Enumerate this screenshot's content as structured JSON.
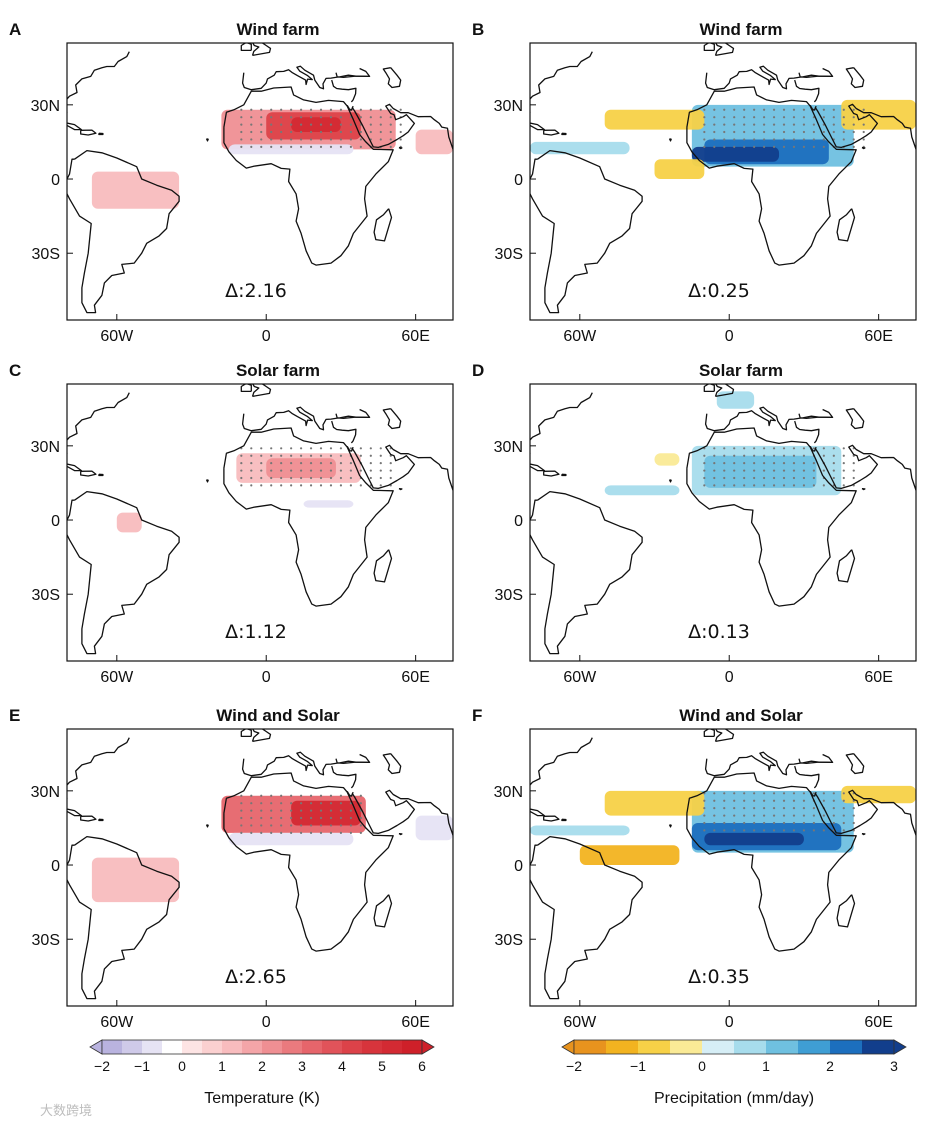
{
  "figure": {
    "watermark": "大数跨境"
  },
  "chart_data": [
    {
      "panel": "A",
      "type": "heatmap",
      "title": "Wind farm",
      "variable": "temperature",
      "units": "K",
      "delta_label": "Δ:2.16",
      "xticks": [
        "60W",
        "0",
        "60E"
      ],
      "yticks": [
        "30N",
        "0",
        "30S"
      ],
      "xlim_deg": [
        -80,
        75
      ],
      "ylim_deg": [
        -57,
        55
      ],
      "anomalies": [
        {
          "lon": [
            -18,
            52
          ],
          "lat": [
            12,
            28
          ],
          "value": 2.0
        },
        {
          "lon": [
            0,
            38
          ],
          "lat": [
            16,
            27
          ],
          "value": 4.0
        },
        {
          "lon": [
            10,
            30
          ],
          "lat": [
            19,
            25
          ],
          "value": 5.0
        },
        {
          "lon": [
            -70,
            -35
          ],
          "lat": [
            -12,
            3
          ],
          "value": 1.0
        },
        {
          "lon": [
            -15,
            35
          ],
          "lat": [
            10,
            14
          ],
          "value": -1.0
        },
        {
          "lon": [
            60,
            75
          ],
          "lat": [
            10,
            20
          ],
          "value": 1.0
        }
      ],
      "stippling": [
        {
          "lon": [
            -10,
            55
          ],
          "lat": [
            13,
            28
          ]
        }
      ]
    },
    {
      "panel": "B",
      "type": "heatmap",
      "title": "Wind farm",
      "variable": "precipitation",
      "units": "mm/day",
      "delta_label": "Δ:0.25",
      "xticks": [
        "60W",
        "0",
        "60E"
      ],
      "yticks": [
        "30N",
        "0",
        "30S"
      ],
      "xlim_deg": [
        -80,
        75
      ],
      "ylim_deg": [
        -57,
        55
      ],
      "anomalies": [
        {
          "lon": [
            -15,
            50
          ],
          "lat": [
            5,
            30
          ],
          "value": 1.0
        },
        {
          "lon": [
            -10,
            40
          ],
          "lat": [
            6,
            16
          ],
          "value": 2.0
        },
        {
          "lon": [
            -15,
            20
          ],
          "lat": [
            7,
            13
          ],
          "value": 2.5
        },
        {
          "lon": [
            -50,
            -10
          ],
          "lat": [
            20,
            28
          ],
          "value": -1.0
        },
        {
          "lon": [
            45,
            75
          ],
          "lat": [
            20,
            32
          ],
          "value": -1.0
        },
        {
          "lon": [
            -30,
            -10
          ],
          "lat": [
            0,
            8
          ],
          "value": -1.0
        },
        {
          "lon": [
            -80,
            -40
          ],
          "lat": [
            10,
            15
          ],
          "value": 0.5
        }
      ],
      "stippling": [
        {
          "lon": [
            -10,
            55
          ],
          "lat": [
            13,
            28
          ]
        }
      ]
    },
    {
      "panel": "C",
      "type": "heatmap",
      "title": "Solar farm",
      "variable": "temperature",
      "units": "K",
      "delta_label": "Δ:1.12",
      "xticks": [
        "60W",
        "0",
        "60E"
      ],
      "yticks": [
        "30N",
        "0",
        "30S"
      ],
      "xlim_deg": [
        -80,
        75
      ],
      "ylim_deg": [
        -57,
        55
      ],
      "anomalies": [
        {
          "lon": [
            -12,
            38
          ],
          "lat": [
            15,
            27
          ],
          "value": 1.0
        },
        {
          "lon": [
            0,
            28
          ],
          "lat": [
            17,
            25
          ],
          "value": 2.0
        },
        {
          "lon": [
            -60,
            -50
          ],
          "lat": [
            -5,
            3
          ],
          "value": 1.0
        },
        {
          "lon": [
            15,
            35
          ],
          "lat": [
            5,
            8
          ],
          "value": -1.0
        }
      ],
      "stippling": [
        {
          "lon": [
            -10,
            50
          ],
          "lat": [
            14,
            30
          ]
        }
      ]
    },
    {
      "panel": "D",
      "type": "heatmap",
      "title": "Solar farm",
      "variable": "precipitation",
      "units": "mm/day",
      "delta_label": "Δ:0.13",
      "xticks": [
        "60W",
        "0",
        "60E"
      ],
      "yticks": [
        "30N",
        "0",
        "30S"
      ],
      "xlim_deg": [
        -80,
        75
      ],
      "ylim_deg": [
        -57,
        55
      ],
      "anomalies": [
        {
          "lon": [
            -15,
            45
          ],
          "lat": [
            10,
            30
          ],
          "value": 0.5
        },
        {
          "lon": [
            -10,
            35
          ],
          "lat": [
            13,
            26
          ],
          "value": 1.0
        },
        {
          "lon": [
            -50,
            -20
          ],
          "lat": [
            10,
            14
          ],
          "value": 0.5
        },
        {
          "lon": [
            -30,
            -20
          ],
          "lat": [
            22,
            27
          ],
          "value": -0.5
        },
        {
          "lon": [
            -5,
            10
          ],
          "lat": [
            45,
            52
          ],
          "value": 0.5
        }
      ],
      "stippling": [
        {
          "lon": [
            -10,
            50
          ],
          "lat": [
            14,
            30
          ]
        }
      ]
    },
    {
      "panel": "E",
      "type": "heatmap",
      "title": "Wind and Solar",
      "variable": "temperature",
      "units": "K",
      "delta_label": "Δ:2.65",
      "xticks": [
        "60W",
        "0",
        "60E"
      ],
      "yticks": [
        "30N",
        "0",
        "30S"
      ],
      "xlim_deg": [
        -80,
        75
      ],
      "ylim_deg": [
        -57,
        55
      ],
      "anomalies": [
        {
          "lon": [
            -18,
            40
          ],
          "lat": [
            13,
            28
          ],
          "value": 3.0
        },
        {
          "lon": [
            10,
            38
          ],
          "lat": [
            16,
            26
          ],
          "value": 5.0
        },
        {
          "lon": [
            -70,
            -35
          ],
          "lat": [
            -15,
            3
          ],
          "value": 1.0
        },
        {
          "lon": [
            -15,
            35
          ],
          "lat": [
            8,
            13
          ],
          "value": -1.0
        },
        {
          "lon": [
            60,
            75
          ],
          "lat": [
            10,
            20
          ],
          "value": -1.0
        }
      ],
      "stippling": [
        {
          "lon": [
            -10,
            40
          ],
          "lat": [
            13,
            28
          ]
        }
      ]
    },
    {
      "panel": "F",
      "type": "heatmap",
      "title": "Wind and Solar",
      "variable": "precipitation",
      "units": "mm/day",
      "delta_label": "Δ:0.35",
      "xticks": [
        "60W",
        "0",
        "60E"
      ],
      "yticks": [
        "30N",
        "0",
        "30S"
      ],
      "xlim_deg": [
        -80,
        75
      ],
      "ylim_deg": [
        -57,
        55
      ],
      "anomalies": [
        {
          "lon": [
            -15,
            50
          ],
          "lat": [
            5,
            30
          ],
          "value": 1.0
        },
        {
          "lon": [
            -15,
            45
          ],
          "lat": [
            6,
            17
          ],
          "value": 2.0
        },
        {
          "lon": [
            -10,
            30
          ],
          "lat": [
            8,
            13
          ],
          "value": 2.8
        },
        {
          "lon": [
            -50,
            -10
          ],
          "lat": [
            20,
            30
          ],
          "value": -1.0
        },
        {
          "lon": [
            -60,
            -20
          ],
          "lat": [
            0,
            8
          ],
          "value": -1.5
        },
        {
          "lon": [
            45,
            75
          ],
          "lat": [
            25,
            32
          ],
          "value": -1.0
        },
        {
          "lon": [
            -80,
            -40
          ],
          "lat": [
            12,
            16
          ],
          "value": 0.5
        }
      ],
      "stippling": [
        {
          "lon": [
            -10,
            50
          ],
          "lat": [
            14,
            30
          ]
        }
      ]
    }
  ],
  "colorbars": {
    "temperature": {
      "label": "Temperature (K)",
      "ticks": [
        "−2",
        "−1",
        "0",
        "1",
        "2",
        "3",
        "4",
        "5",
        "6"
      ],
      "bounds": [
        -2,
        -1.5,
        -1,
        -0.5,
        0,
        0.5,
        1,
        1.5,
        2,
        2.5,
        3,
        3.5,
        4,
        4.5,
        5,
        5.5,
        6
      ],
      "colors": [
        "#b9b3df",
        "#cfcae9",
        "#e6e3f4",
        "#ffffff",
        "#fde4e4",
        "#fbd0d0",
        "#f8bcbe",
        "#f4a5a8",
        "#ef8f93",
        "#ea7a7e",
        "#e6656b",
        "#e1535a",
        "#dc4249",
        "#d7343c",
        "#d32a33",
        "#ce2029"
      ]
    },
    "precipitation": {
      "label": "Precipitation (mm/day)",
      "ticks": [
        "−2",
        "−1",
        "0",
        "1",
        "2",
        "3"
      ],
      "bounds": [
        -2,
        -1.5,
        -1,
        -0.5,
        0,
        0.5,
        1,
        1.5,
        2,
        2.5,
        3
      ],
      "colors": [
        "#e8931e",
        "#f2b320",
        "#f7d147",
        "#faea96",
        "#d6eef6",
        "#a7dcec",
        "#6fc0e0",
        "#3f9ed4",
        "#1c6fbe",
        "#123e8c"
      ]
    }
  }
}
